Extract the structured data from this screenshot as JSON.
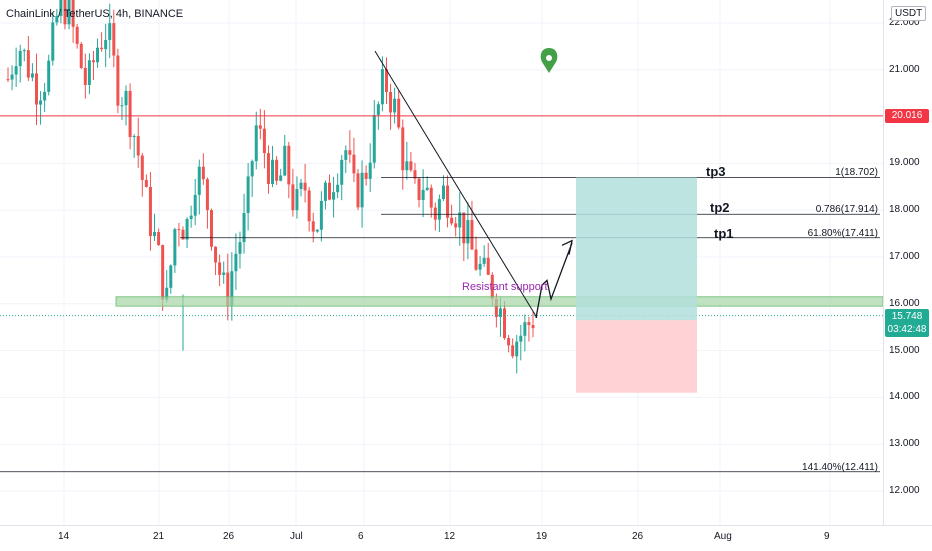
{
  "header": {
    "title": "ChainLink / TetherUS, 4h, BINANCE",
    "currency": "USDT"
  },
  "colors": {
    "up": "#26a69a",
    "down": "#ef5350",
    "resistance": "#f23645",
    "zone": "#a5d6a7",
    "target": "#b2dfdb",
    "stop": "#ffcdd2",
    "label": "#9c27b0",
    "pin": "#43a047",
    "current": "#22ab94"
  },
  "price_axis": {
    "ticks": [
      "22.000",
      "21.000",
      "19.000",
      "18.000",
      "17.000",
      "16.000",
      "15.000",
      "14.000",
      "13.000",
      "12.000"
    ],
    "tick_values": [
      22,
      21,
      19,
      18,
      17,
      16,
      15,
      14,
      13,
      12
    ]
  },
  "time_axis": {
    "labels": [
      "14",
      "21",
      "26",
      "Jul",
      "6",
      "12",
      "19",
      "26",
      "Aug",
      "9"
    ]
  },
  "tags": {
    "resistance_price": "20.016",
    "current_price": "15.748",
    "countdown": "03:42:48"
  },
  "annotations": {
    "tp3": "tp3",
    "tp2": "tp2",
    "tp1": "tp1",
    "fib1": "1(18.702)",
    "fib2": "0.786(17.914)",
    "fib3": "61.80%(17.411)",
    "fib4": "141.40%(12.411)",
    "zone_label": "Resistant support"
  },
  "chart_data": {
    "type": "candlestick",
    "title": "ChainLink / TetherUS, 4h, BINANCE",
    "y_unit": "USDT",
    "ylim": [
      11.7,
      22.4
    ],
    "x_labels": [
      "14",
      "21",
      "26",
      "Jul",
      "6",
      "12",
      "19",
      "26",
      "Aug",
      "9"
    ],
    "close_path": [
      20.8,
      21.6,
      21.1,
      20.6,
      20.9,
      22.2,
      22.4,
      21.4,
      20.6,
      21.5,
      21.9,
      20.7,
      20.3,
      19.4,
      18.1,
      17.2,
      16.0,
      17.9,
      17.6,
      18.9,
      18.3,
      17.0,
      16.1,
      17.1,
      17.8,
      19.8,
      19.2,
      18.4,
      19.0,
      18.0,
      18.5,
      17.6,
      18.2,
      18.8,
      19.4,
      18.3,
      18.7,
      19.8,
      20.8,
      20.2,
      19.0,
      18.3,
      18.6,
      17.9,
      18.4,
      18.1,
      17.6,
      17.0,
      16.6,
      16.3,
      15.7,
      15.2,
      15.4,
      15.7
    ],
    "levels": [
      {
        "label": "resistance",
        "price": 20.016
      },
      {
        "label": "tp3",
        "price": 18.702,
        "text": "1(18.702)"
      },
      {
        "label": "tp2",
        "price": 17.914,
        "text": "0.786(17.914)"
      },
      {
        "label": "tp1",
        "price": 17.411,
        "text": "61.80%(17.411)"
      },
      {
        "label": "ext",
        "price": 12.411,
        "text": "141.40%(12.411)"
      }
    ],
    "support_zone": [
      15.95,
      16.15
    ],
    "current_price": 15.748,
    "position": {
      "entry": 15.65,
      "target": 18.702,
      "stop": 14.1
    },
    "trendline": [
      [
        21.4,
        "start"
      ],
      [
        15.7,
        "end"
      ]
    ]
  }
}
